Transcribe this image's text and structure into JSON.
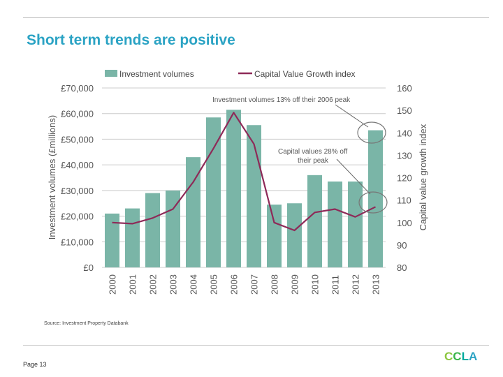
{
  "slide": {
    "title": "Short term trends are positive",
    "source": "Source: Investment Property Databank",
    "page": "Page 13",
    "logo_letters": [
      "C",
      "C",
      "L",
      "A"
    ],
    "logo_colors": [
      "#8cc63f",
      "#39b54a",
      "#00a99d",
      "#2ba3c4"
    ]
  },
  "colors": {
    "bar": "#7ab5a7",
    "line": "#8e2a58",
    "axis_text": "#555555",
    "grid": "#cccccc",
    "title": "#2ba3c4"
  },
  "chart_data": {
    "type": "bar+line",
    "categories": [
      "2000",
      "2001",
      "2002",
      "2003",
      "2004",
      "2005",
      "2006",
      "2007",
      "2008",
      "2009",
      "2010",
      "2011",
      "2012",
      "2013"
    ],
    "series": [
      {
        "name": "Investment volumes",
        "type": "bar",
        "axis": "left",
        "values": [
          21000,
          23000,
          29000,
          30000,
          43000,
          58500,
          61500,
          55500,
          24500,
          25000,
          36000,
          33500,
          33500,
          53500
        ]
      },
      {
        "name": "Capital Value Growth index",
        "type": "line",
        "axis": "right",
        "values": [
          100,
          99.5,
          102,
          106,
          118,
          133,
          149,
          135,
          100,
          96.5,
          104.5,
          106,
          102.5,
          107
        ]
      }
    ],
    "y_left": {
      "label": "Investment volumes (£millions)",
      "min": 0,
      "max": 70000,
      "ticks": [
        0,
        10000,
        20000,
        30000,
        40000,
        50000,
        60000,
        70000
      ],
      "tick_labels": [
        "£0",
        "£10,000",
        "£20,000",
        "£30,000",
        "£40,000",
        "£50,000",
        "£60,000",
        "£70,000"
      ]
    },
    "y_right": {
      "label": "Capital value growth index",
      "min": 80,
      "max": 160,
      "ticks": [
        80,
        90,
        100,
        110,
        120,
        130,
        140,
        150,
        160
      ],
      "tick_labels": [
        "80",
        "90",
        "100",
        "110",
        "120",
        "130",
        "140",
        "150",
        "160"
      ]
    },
    "legend": [
      {
        "label": "Investment volumes",
        "kind": "bar"
      },
      {
        "label": "Capital Value Growth index",
        "kind": "line"
      }
    ],
    "annotations": [
      {
        "text": "Investment volumes 13% off their 2006 peak",
        "points_to": "2013 bar top"
      },
      {
        "text_lines": [
          "Capital values 28% off",
          "their peak"
        ],
        "points_to": "2013 index value"
      }
    ],
    "grid": true
  }
}
